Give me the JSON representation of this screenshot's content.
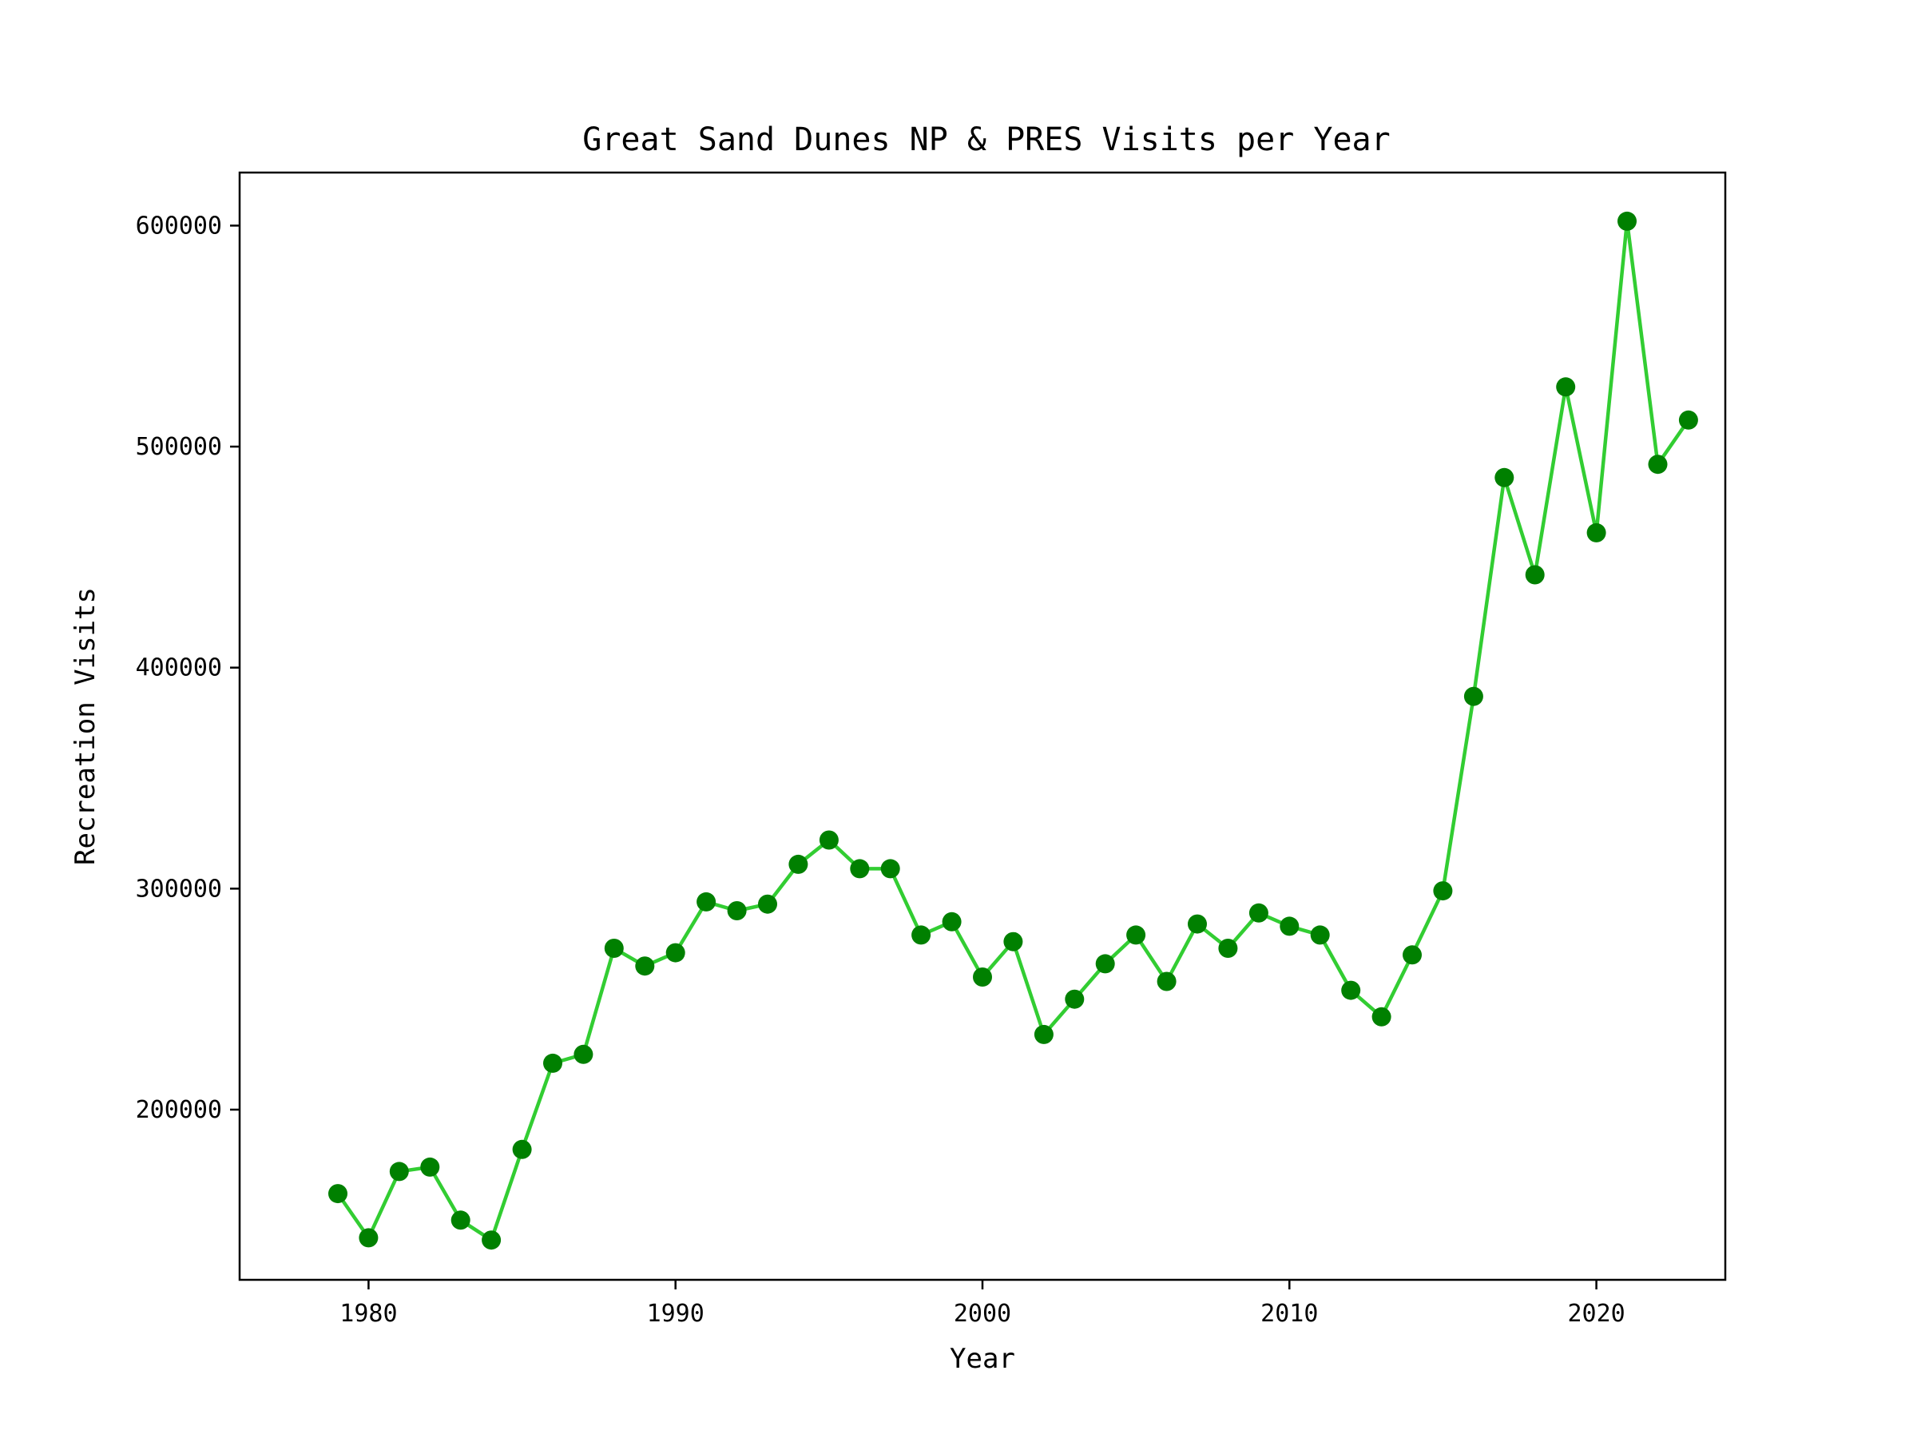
{
  "chart_data": {
    "type": "line",
    "title": "Great Sand Dunes NP & PRES Visits per Year",
    "xlabel": "Year",
    "ylabel": "Recreation Visits",
    "xlim": [
      1975.8,
      2024.2
    ],
    "ylim": [
      123000,
      624000
    ],
    "xticks": [
      1980,
      1990,
      2000,
      2010,
      2020
    ],
    "yticks": [
      200000,
      300000,
      400000,
      500000,
      600000
    ],
    "grid": false,
    "legend": "none",
    "colors": {
      "line": "#32cd32",
      "marker": "#008000"
    },
    "x": [
      1979,
      1980,
      1981,
      1982,
      1983,
      1984,
      1985,
      1986,
      1987,
      1988,
      1989,
      1990,
      1991,
      1992,
      1993,
      1994,
      1995,
      1996,
      1997,
      1998,
      1999,
      2000,
      2001,
      2002,
      2003,
      2004,
      2005,
      2006,
      2007,
      2008,
      2009,
      2010,
      2011,
      2012,
      2013,
      2014,
      2015,
      2016,
      2017,
      2018,
      2019,
      2020,
      2021,
      2022,
      2023
    ],
    "series": [
      {
        "values": [
          162000,
          142000,
          172000,
          174000,
          150000,
          141000,
          182000,
          221000,
          225000,
          273000,
          265000,
          271000,
          294000,
          290000,
          293000,
          311000,
          322000,
          309000,
          309000,
          279000,
          285000,
          260000,
          276000,
          234000,
          250000,
          266000,
          279000,
          258000,
          284000,
          273000,
          289000,
          283000,
          279000,
          254000,
          242000,
          270000,
          299000,
          387000,
          486000,
          442000,
          527000,
          461000,
          602000,
          492000,
          512000
        ]
      }
    ]
  }
}
